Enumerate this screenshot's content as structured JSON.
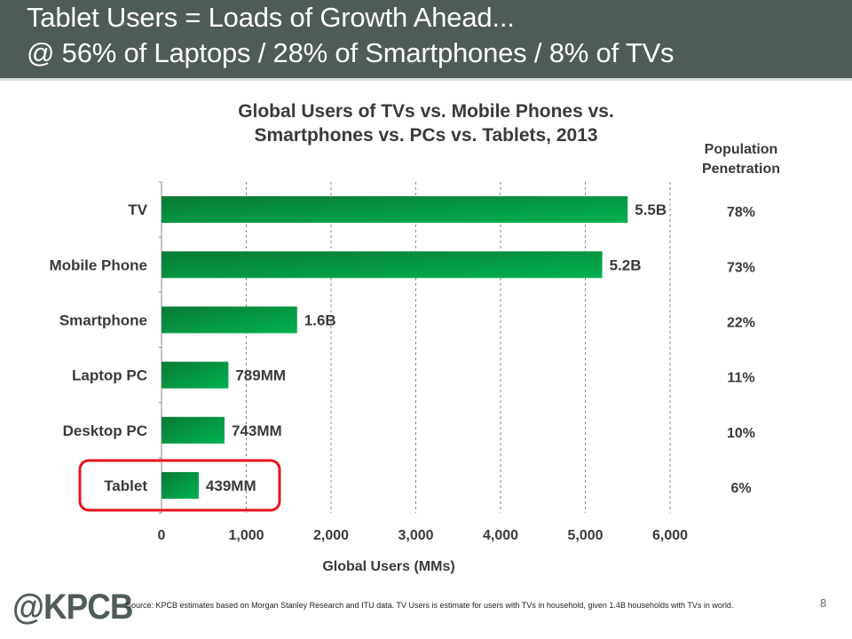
{
  "header": {
    "line1": "Tablet Users = Loads of Growth Ahead...",
    "line2": "@ 56% of Laptops / 28% of Smartphones / 8% of TVs",
    "background": "#4f5b59"
  },
  "population_penetration_header": [
    "Population",
    "Penetration"
  ],
  "chart_data": {
    "type": "bar",
    "orientation": "horizontal",
    "title": [
      "Global Users of TVs vs. Mobile Phones vs.",
      "Smartphones vs. PCs vs. Tablets, 2013"
    ],
    "xlabel": "Global Users (MMs)",
    "ylabel": "",
    "categories": [
      "TV",
      "Mobile Phone",
      "Smartphone",
      "Laptop PC",
      "Desktop PC",
      "Tablet"
    ],
    "values": [
      5500,
      5200,
      1600,
      789,
      743,
      439
    ],
    "value_labels": [
      "5.5B",
      "5.2B",
      "1.6B",
      "789MM",
      "743MM",
      "439MM"
    ],
    "population_penetration": [
      "78%",
      "73%",
      "22%",
      "11%",
      "10%",
      "6%"
    ],
    "xlim": [
      0,
      6000
    ],
    "xticks": [
      0,
      1000,
      2000,
      3000,
      4000,
      5000,
      6000
    ],
    "xtick_labels": [
      "0",
      "1,000",
      "2,000",
      "3,000",
      "4,000",
      "5,000",
      "6,000"
    ],
    "grid": "vertical dashed",
    "highlight": {
      "category": "Tablet",
      "style": "red rounded box"
    },
    "bar_color": "#00a84f",
    "bar_color_dark": "#0a7a35",
    "highlight_color": "#e8141c"
  },
  "footer": {
    "logo": "@KPCB",
    "source": "Source: KPCB estimates based on Morgan Stanley Research and ITU data. TV Users is estimate for users with TVs in household, given 1.4B households with TVs in world.",
    "page_number": "8"
  }
}
